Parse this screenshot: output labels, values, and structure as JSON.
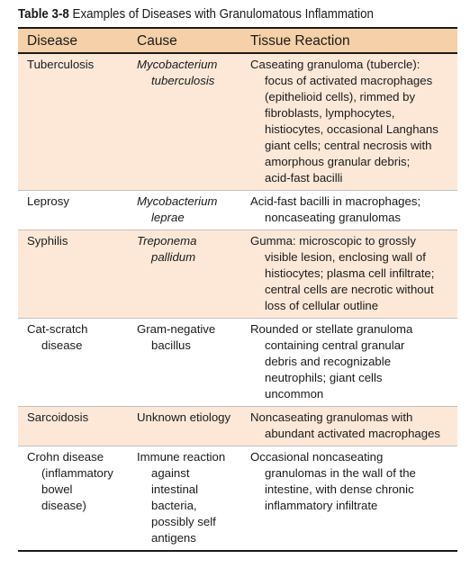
{
  "caption": {
    "number": "Table 3-8",
    "title": "Examples of Diseases with Granulomatous Inflammation"
  },
  "headers": [
    "Disease",
    "Cause",
    "Tissue Reaction"
  ],
  "rows": [
    {
      "disease": [
        "Tuberculosis"
      ],
      "cause": [
        "Mycobacterium",
        "tuberculosis"
      ],
      "cause_italic": true,
      "reaction": [
        "Caseating granuloma (tubercle):",
        "focus of activated macrophages",
        "(epithelioid cells), rimmed by",
        "fibroblasts, lymphocytes,",
        "histiocytes, occasional Langhans",
        "giant cells; central necrosis with",
        "amorphous granular debris;",
        "acid-fast bacilli"
      ]
    },
    {
      "disease": [
        "Leprosy"
      ],
      "cause": [
        "Mycobacterium",
        "leprae"
      ],
      "cause_italic": true,
      "reaction": [
        "Acid-fast bacilli in macrophages;",
        "noncaseating granulomas"
      ]
    },
    {
      "disease": [
        "Syphilis"
      ],
      "cause": [
        "Treponema",
        "pallidum"
      ],
      "cause_italic": true,
      "reaction": [
        "Gumma: microscopic to grossly",
        "visible lesion, enclosing wall of",
        "histiocytes; plasma cell infiltrate;",
        "central cells are necrotic without",
        "loss of cellular outline"
      ]
    },
    {
      "disease": [
        "Cat-scratch",
        "disease"
      ],
      "cause": [
        "Gram-negative",
        "bacillus"
      ],
      "cause_italic": false,
      "reaction": [
        "Rounded or stellate granuloma",
        "containing central granular",
        "debris and recognizable",
        "neutrophils; giant cells",
        "uncommon"
      ]
    },
    {
      "disease": [
        "Sarcoidosis"
      ],
      "cause": [
        "Unknown etiology"
      ],
      "cause_italic": false,
      "reaction": [
        "Noncaseating granulomas with",
        "abundant activated macrophages"
      ]
    },
    {
      "disease": [
        "Crohn disease",
        "(inflammatory",
        "bowel",
        "disease)"
      ],
      "cause": [
        "Immune reaction",
        "against",
        "intestinal",
        "bacteria,",
        "possibly self",
        "antigens"
      ],
      "cause_italic": false,
      "reaction": [
        "Occasional noncaseating",
        "granulomas in the wall of the",
        "intestine, with dense chronic",
        "inflammatory infiltrate"
      ]
    }
  ]
}
